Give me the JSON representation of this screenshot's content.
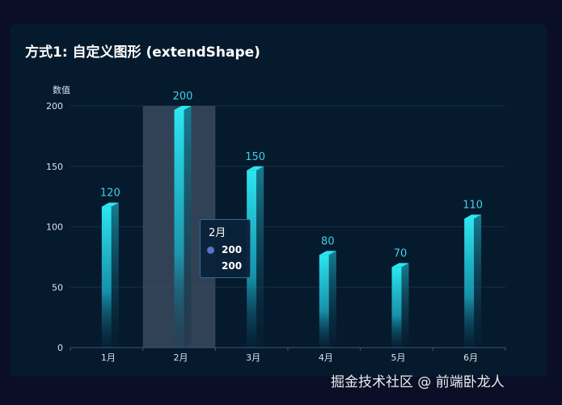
{
  "title": "方式1: 自定义图形 (extendShape)",
  "watermark": "掘金技术社区 @ 前端卧龙人",
  "chart_data": {
    "type": "bar",
    "categories": [
      "1月",
      "2月",
      "3月",
      "4月",
      "5月",
      "6月"
    ],
    "series": [
      {
        "values": [
          120,
          200,
          150,
          80,
          70,
          110
        ]
      }
    ],
    "data_labels": [
      "120",
      "200",
      "150",
      "80",
      "70",
      "110"
    ],
    "ylabel": "数值",
    "ylim": [
      0,
      200
    ],
    "yticks": [
      0,
      50,
      100,
      150,
      200
    ],
    "ytick_labels": [
      "0",
      "50",
      "100",
      "150",
      "200"
    ],
    "grid": true,
    "highlighted_category": "2月",
    "tooltip": {
      "title": "2月",
      "rows": [
        "200",
        "200"
      ]
    },
    "colors": {
      "bar_top": "#2de6f2",
      "bar_bottom": "#0a3a55",
      "label": "#3fd0e6",
      "axis_text": "#d8e2ee",
      "grid": "#12304a",
      "highlight": "#3b4a5e",
      "tooltip_marker": "#5b72c8"
    }
  }
}
